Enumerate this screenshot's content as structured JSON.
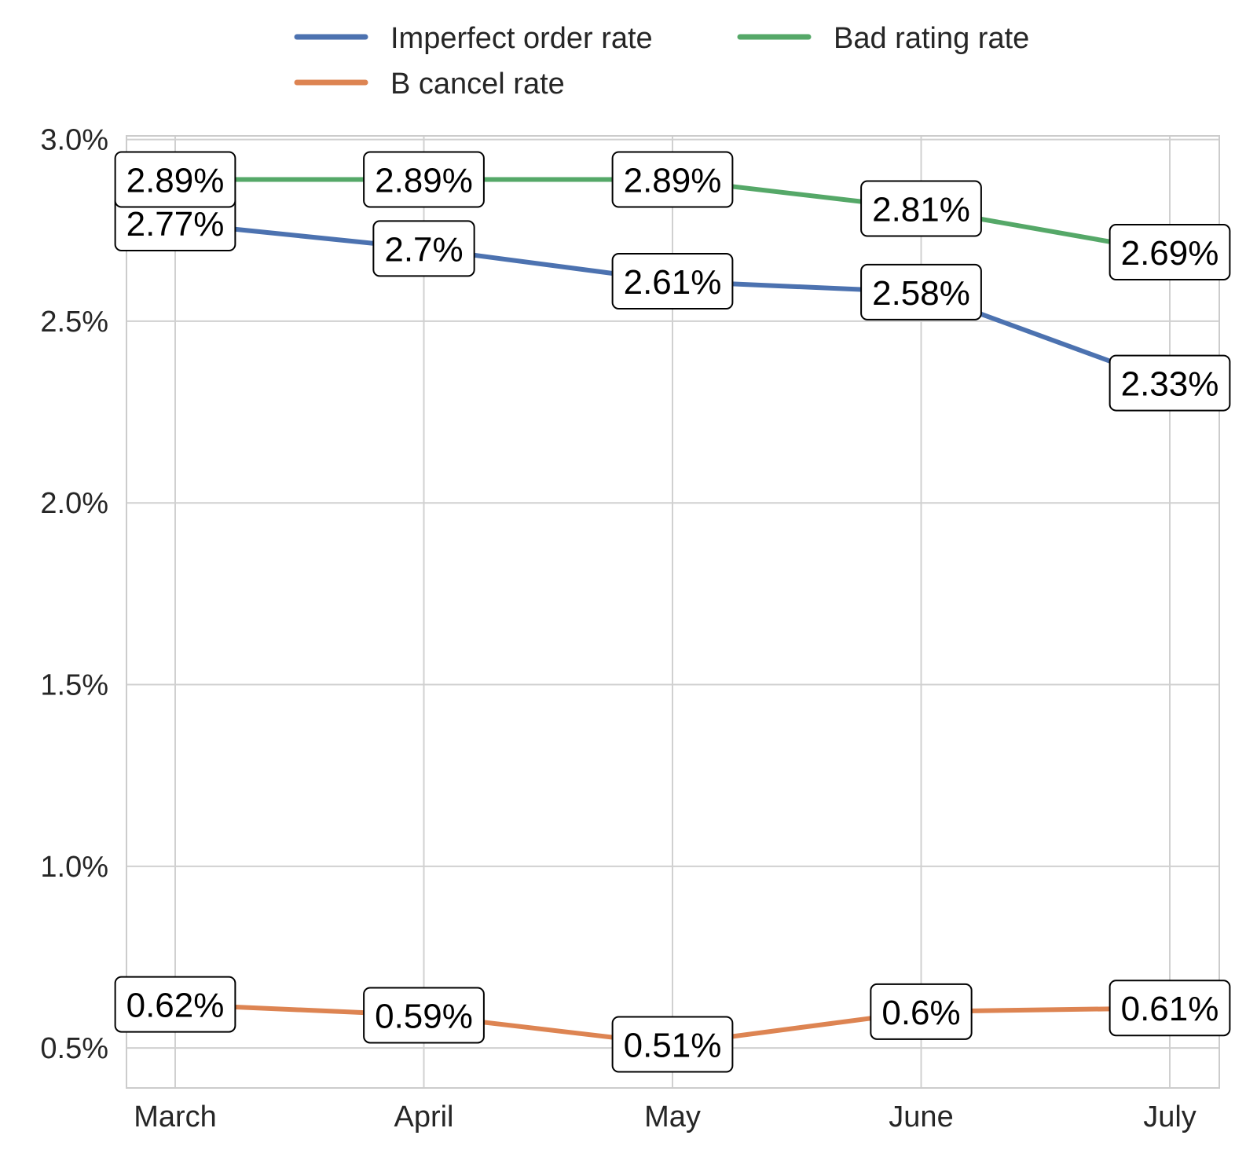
{
  "chart_data": {
    "type": "line",
    "title": "",
    "xlabel": "",
    "ylabel": "",
    "categories": [
      "March",
      "April",
      "May",
      "June",
      "July"
    ],
    "ylim": [
      0.39,
      3.01
    ],
    "yticks": [
      0.5,
      1.0,
      1.5,
      2.0,
      2.5,
      3.0
    ],
    "ytick_labels": [
      "0.5%",
      "1.0%",
      "1.5%",
      "2.0%",
      "2.5%",
      "3.0%"
    ],
    "grid": true,
    "legend_position": "top-center",
    "series": [
      {
        "name": "Imperfect order rate",
        "color": "#4c72b0",
        "values": [
          2.77,
          2.7,
          2.61,
          2.58,
          2.33
        ],
        "labels": [
          "2.77%",
          "2.7%",
          "2.61%",
          "2.58%",
          "2.33%"
        ]
      },
      {
        "name": "B cancel rate",
        "color": "#dd8452",
        "values": [
          0.62,
          0.59,
          0.51,
          0.6,
          0.61
        ],
        "labels": [
          "0.62%",
          "0.59%",
          "0.51%",
          "0.6%",
          "0.61%"
        ]
      },
      {
        "name": "Bad rating rate",
        "color": "#55a868",
        "values": [
          2.89,
          2.89,
          2.89,
          2.81,
          2.69
        ],
        "labels": [
          "2.89%",
          "2.89%",
          "2.89%",
          "2.81%",
          "2.69%"
        ]
      }
    ]
  }
}
